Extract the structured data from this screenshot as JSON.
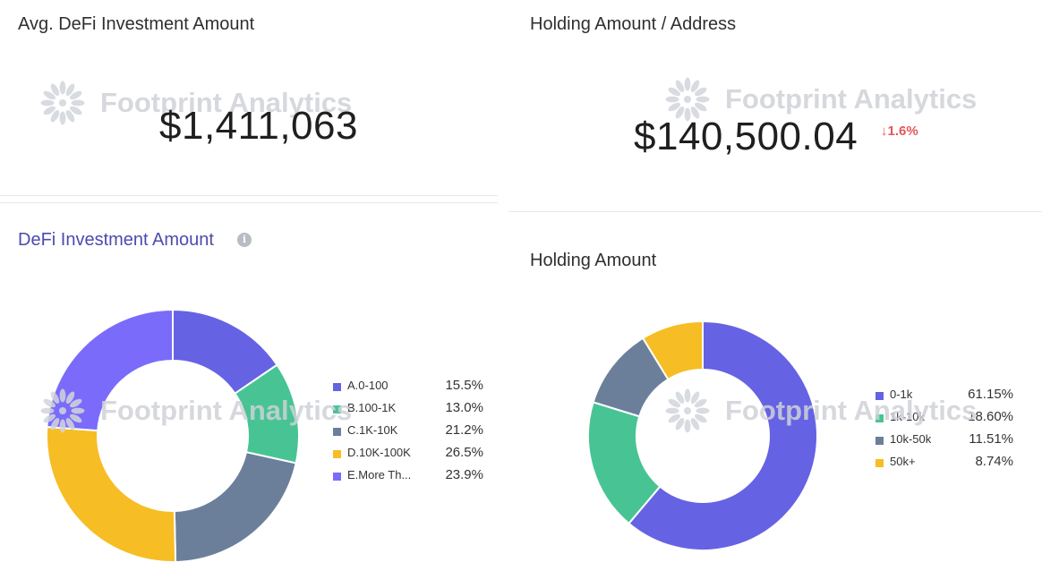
{
  "colors": {
    "purple": "#6563e3",
    "green": "#48c494",
    "slate": "#6b7f9b",
    "yellow": "#f6bd24",
    "violet": "#7a6bfb",
    "negative": "#e45757"
  },
  "watermark": {
    "text": "Footprint Analytics",
    "icon": "sunburst-logo-icon"
  },
  "cards": {
    "avg_investment": {
      "title": "Avg. DeFi Investment Amount",
      "value": "$1,411,063"
    },
    "holding_per_address": {
      "title": "Holding Amount / Address",
      "value": "$140,500.04",
      "delta": "1.6%",
      "delta_icon": "arrow-down-icon"
    },
    "defi_investment": {
      "title": "DeFi Investment Amount",
      "info_icon": "info-icon"
    },
    "holding_amount": {
      "title": "Holding Amount"
    }
  },
  "chart_data": [
    {
      "type": "pie",
      "title": "DeFi Investment Amount",
      "donut": true,
      "legend": "right",
      "categories": [
        "A.0-100",
        "B.100-1K",
        "C.1K-10K",
        "D.10K-100K",
        "E.More Th..."
      ],
      "values": [
        15.5,
        13.0,
        21.2,
        26.5,
        23.9
      ],
      "labels": [
        "15.5%",
        "13.0%",
        "21.2%",
        "26.5%",
        "23.9%"
      ],
      "colors": [
        "#6563e3",
        "#48c494",
        "#6b7f9b",
        "#f6bd24",
        "#7a6bfb"
      ]
    },
    {
      "type": "pie",
      "title": "Holding Amount",
      "donut": true,
      "legend": "right",
      "categories": [
        "0-1k",
        "1k-10k",
        "10k-50k",
        "50k+"
      ],
      "values": [
        61.15,
        18.6,
        11.51,
        8.74
      ],
      "labels": [
        "61.15%",
        "18.60%",
        "11.51%",
        "8.74%"
      ],
      "colors": [
        "#6563e3",
        "#48c494",
        "#6b7f9b",
        "#f6bd24"
      ]
    }
  ]
}
